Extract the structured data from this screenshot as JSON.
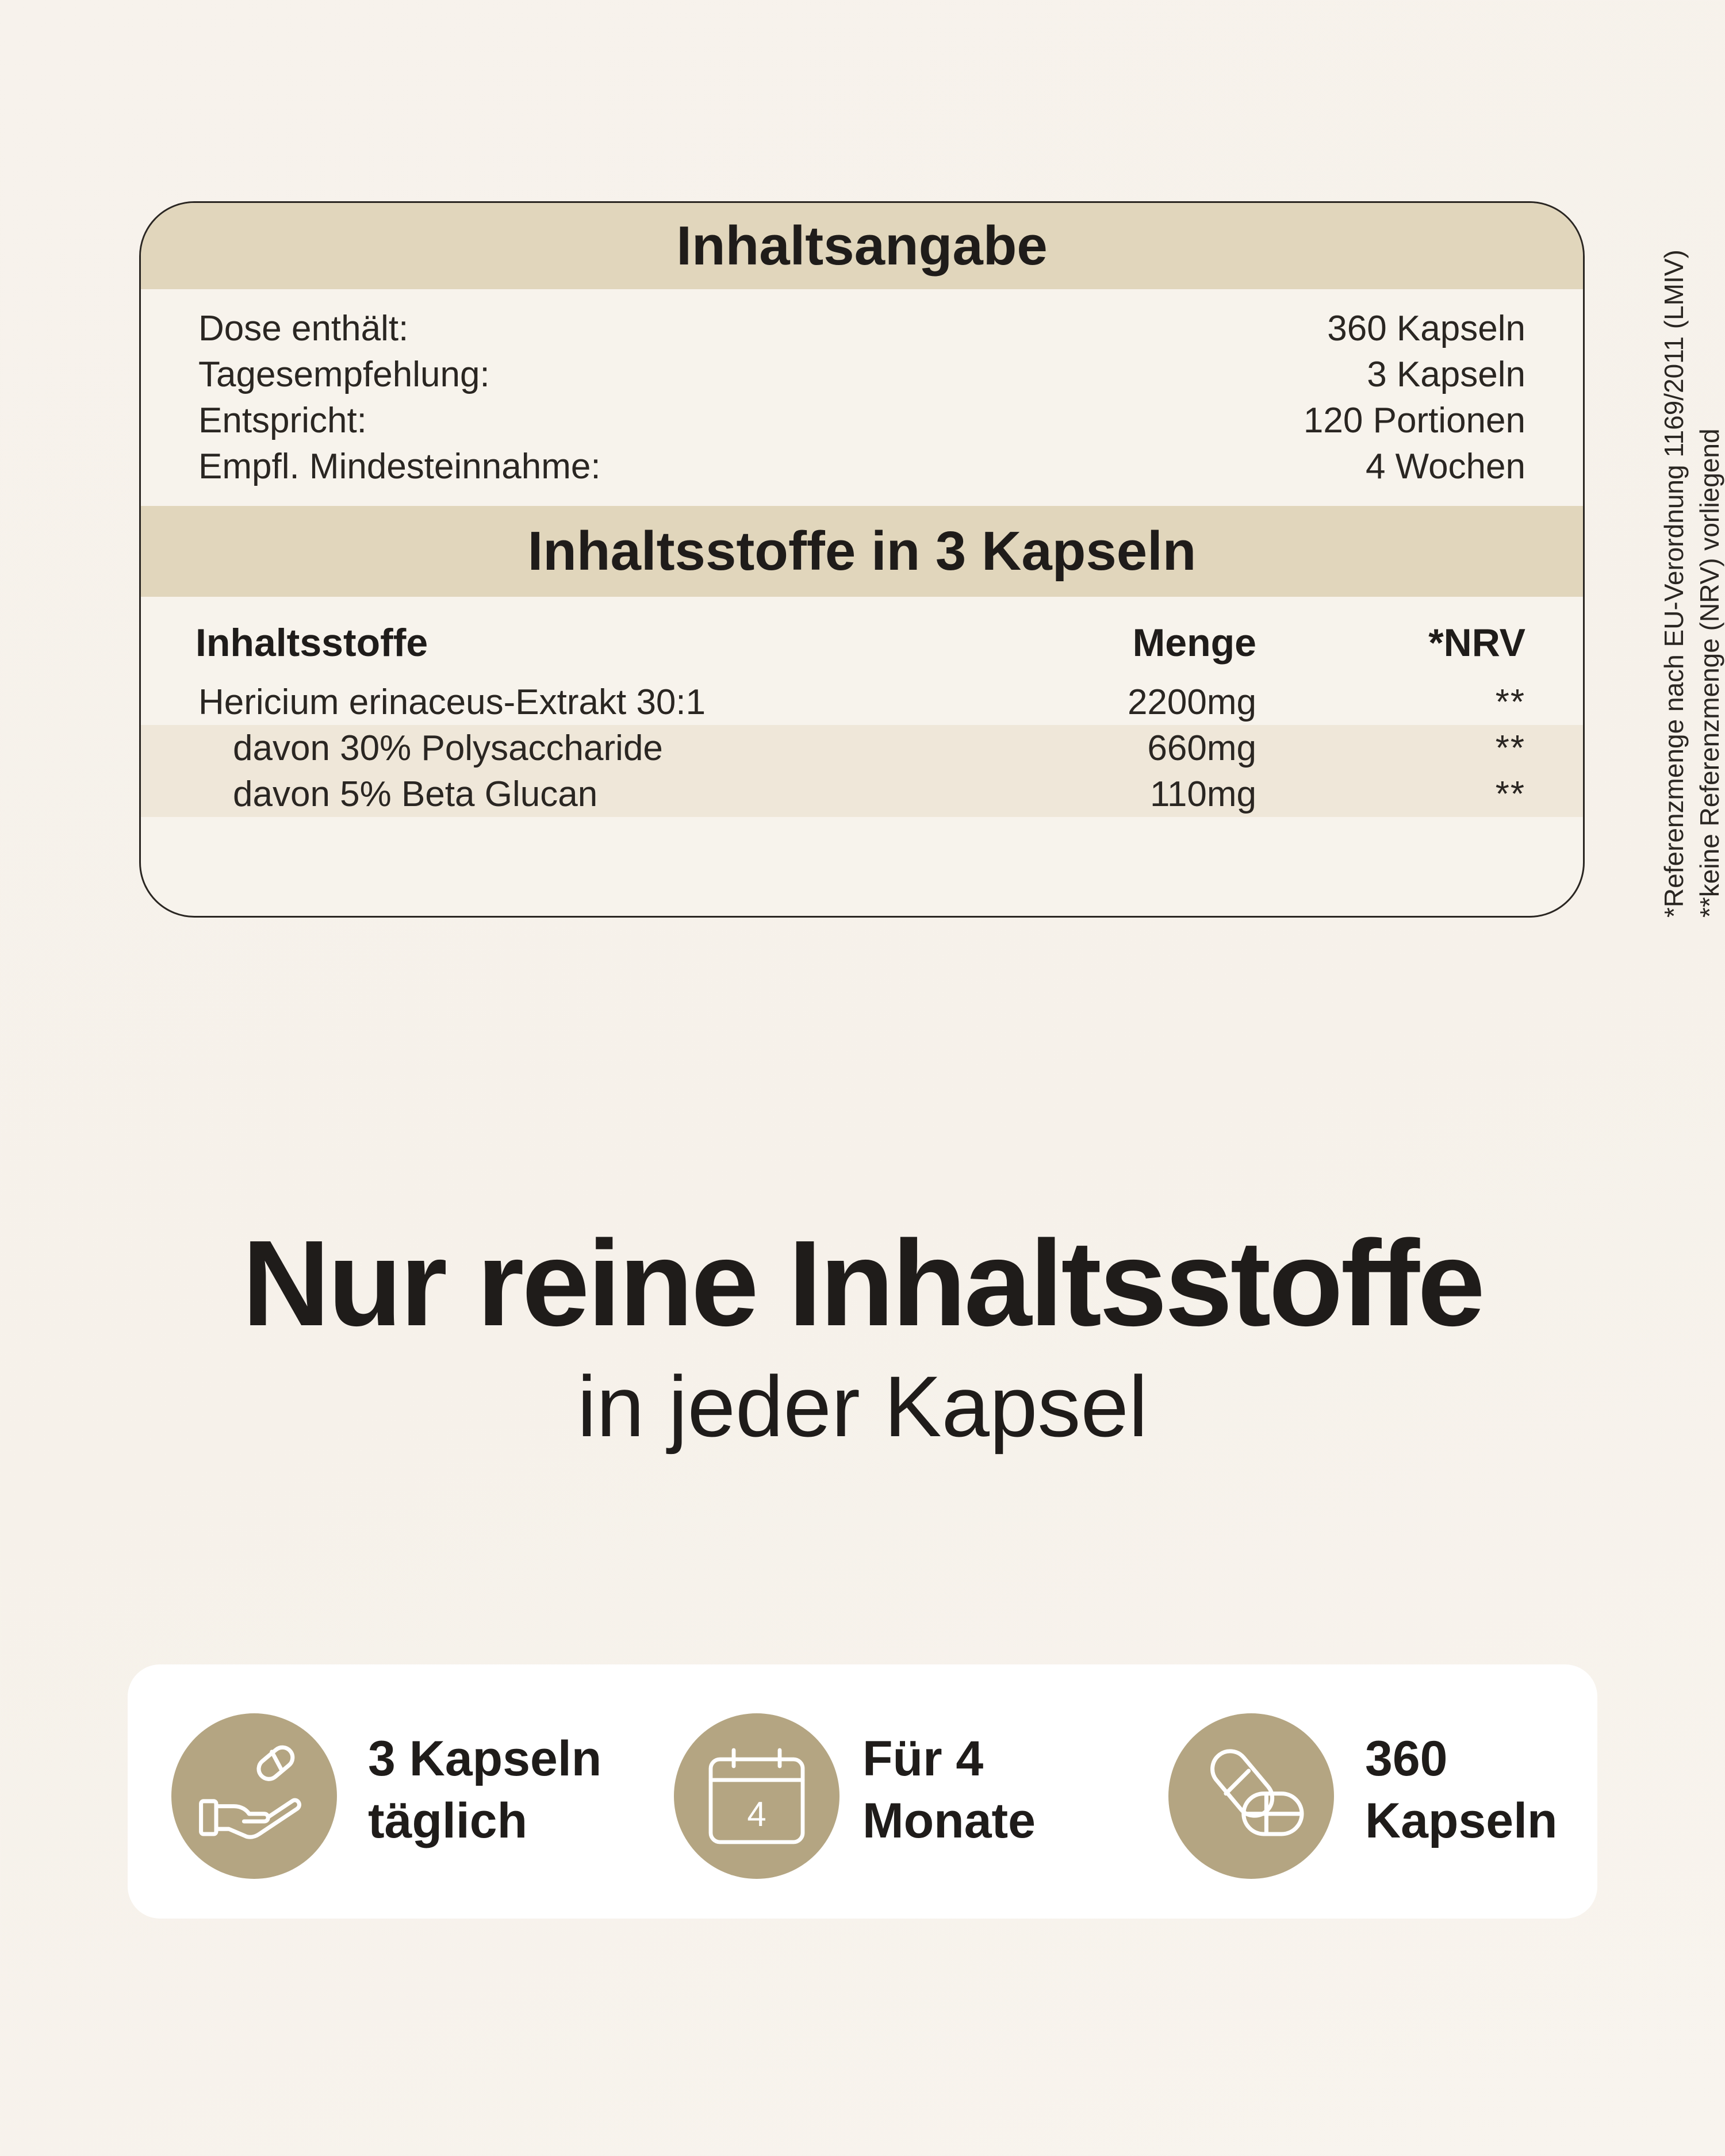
{
  "panel": {
    "title": "Inhaltsangabe",
    "info_rows": [
      {
        "label": "Dose enthält:",
        "value": "360 Kapseln"
      },
      {
        "label": "Tagesempfehlung:",
        "value": "3 Kapseln"
      },
      {
        "label": "Entspricht:",
        "value": "120 Portionen"
      },
      {
        "label": "Empfl. Mindesteinnahme:",
        "value": "4 Wochen"
      }
    ],
    "ingredients_title": "Inhaltsstoffe in 3 Kapseln",
    "columns": {
      "name": "Inhaltsstoffe",
      "amount": "Menge",
      "nrv": "*NRV"
    },
    "ingredients": [
      {
        "name": "Hericium erinaceus-Extrakt 30:1",
        "amount": "2200mg",
        "nrv": "**"
      },
      {
        "name": "davon 30% Polysaccharide",
        "amount": "660mg",
        "nrv": "**"
      },
      {
        "name": "davon 5% Beta Glucan",
        "amount": "110mg",
        "nrv": "**"
      }
    ],
    "footnotes": [
      "*Referenzmenge nach EU-Verordnung 1169/2011 (LMIV)",
      "**keine Referenzmenge (NRV) vorliegend"
    ]
  },
  "headline": "Nur reine Inhaltsstoffe",
  "subheadline": "in jeder Kapsel",
  "features": [
    {
      "icon": "hand-capsule-icon",
      "line1": "3 Kapseln",
      "line2": "täglich"
    },
    {
      "icon": "calendar-icon",
      "calendar_number": "4",
      "line1": "Für 4",
      "line2": "Monate"
    },
    {
      "icon": "capsules-icon",
      "line1": "360",
      "line2": "Kapseln"
    }
  ],
  "colors": {
    "band": "#e1d6bc",
    "icon_circle": "#b4a582",
    "text": "#1f1c1a",
    "background": "#f7f2ec"
  }
}
